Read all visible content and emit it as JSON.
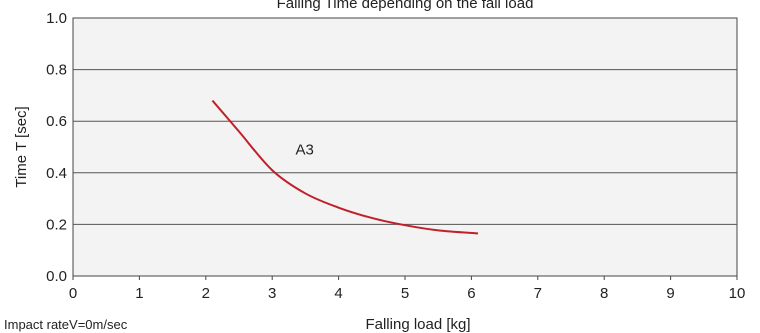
{
  "chart_data": {
    "type": "line",
    "title": "Falling Time depending on the fall load",
    "xlabel": "Falling load [kg]",
    "ylabel": "Time T [sec]",
    "xlim": [
      0,
      10
    ],
    "ylim": [
      0.0,
      1.0
    ],
    "x_ticks": [
      "0",
      "1",
      "2",
      "3",
      "4",
      "5",
      "6",
      "7",
      "8",
      "9",
      "10"
    ],
    "y_ticks": [
      "0.0",
      "0.2",
      "0.4",
      "0.6",
      "0.8",
      "1.0"
    ],
    "grid": "horizontal",
    "series": [
      {
        "name": "A3",
        "color": "#c0202a",
        "x": [
          2.1,
          2.5,
          3.0,
          3.5,
          4.0,
          4.5,
          5.0,
          5.5,
          6.1
        ],
        "y": [
          0.68,
          0.56,
          0.41,
          0.32,
          0.265,
          0.225,
          0.197,
          0.177,
          0.165
        ]
      }
    ],
    "annotations": [
      {
        "text": "A3",
        "x": 3.35,
        "y": 0.47
      }
    ],
    "footnote": "Impact rateV=0m/sec"
  }
}
